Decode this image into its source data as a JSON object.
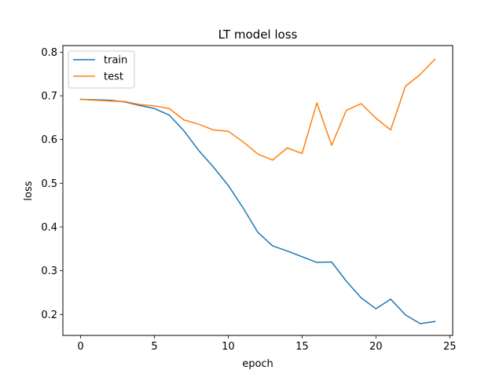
{
  "chart_data": {
    "type": "line",
    "title": "LT model loss",
    "xlabel": "epoch",
    "ylabel": "loss",
    "xlim": [
      -1.2,
      25.2
    ],
    "ylim": [
      0.152,
      0.815
    ],
    "xticks": [
      0,
      5,
      10,
      15,
      20,
      25
    ],
    "xtick_labels": [
      "0",
      "5",
      "10",
      "15",
      "20",
      "25"
    ],
    "yticks": [
      0.2,
      0.3,
      0.4,
      0.5,
      0.6,
      0.7,
      0.8
    ],
    "ytick_labels": [
      "0.2",
      "0.3",
      "0.4",
      "0.5",
      "0.6",
      "0.7",
      "0.8"
    ],
    "grid": false,
    "legend_position": "upper-left",
    "x": [
      0,
      1,
      2,
      3,
      4,
      5,
      6,
      7,
      8,
      9,
      10,
      11,
      12,
      13,
      14,
      15,
      16,
      17,
      18,
      19,
      20,
      21,
      22,
      23,
      24
    ],
    "series": [
      {
        "name": "train",
        "color": "#1f77b4",
        "values": [
          0.692,
          0.691,
          0.69,
          0.686,
          0.678,
          0.671,
          0.656,
          0.62,
          0.575,
          0.537,
          0.495,
          0.444,
          0.388,
          0.357,
          0.345,
          0.332,
          0.319,
          0.32,
          0.276,
          0.238,
          0.213,
          0.235,
          0.199,
          0.179,
          0.184
        ]
      },
      {
        "name": "test",
        "color": "#ff7f0e",
        "values": [
          0.692,
          0.69,
          0.688,
          0.687,
          0.68,
          0.677,
          0.671,
          0.645,
          0.635,
          0.622,
          0.619,
          0.595,
          0.567,
          0.553,
          0.581,
          0.568,
          0.684,
          0.587,
          0.667,
          0.682,
          0.649,
          0.622,
          0.722,
          0.749,
          0.784
        ]
      }
    ]
  }
}
